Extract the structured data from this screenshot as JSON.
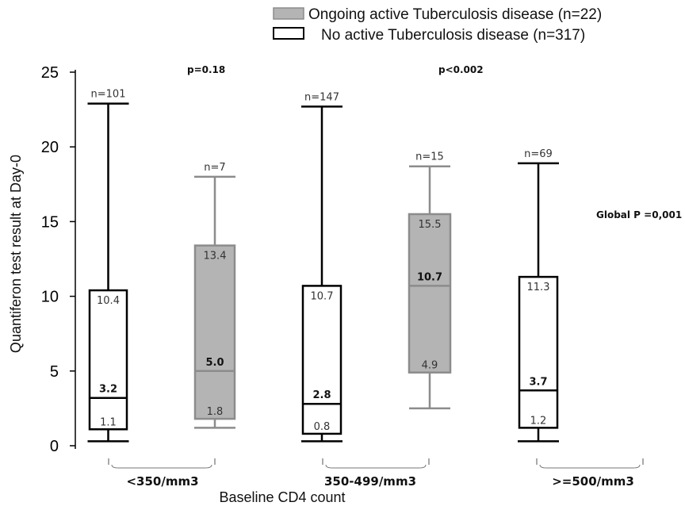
{
  "chart_data": {
    "type": "boxplot",
    "ylabel": "Quantiferon test result at Day-0",
    "xlabel": "Baseline CD4 count",
    "ylim": [
      0,
      25
    ],
    "yticks": [
      0,
      5,
      10,
      15,
      20,
      25
    ],
    "groups": [
      "<350/mm3",
      "350-499/mm3",
      ">=500/mm3"
    ],
    "legend": [
      {
        "label": "Ongoing active Tuberculosis disease (n=22)",
        "fill": "#b4b4b4",
        "stroke": "#8c8c8c"
      },
      {
        "label": "No active Tuberculosis disease (n=317)",
        "fill": "#ffffff",
        "stroke": "#000000"
      }
    ],
    "series": [
      {
        "name": "No active Tuberculosis disease (n=317)",
        "boxes": [
          {
            "group": "<350/mm3",
            "n": "n=101",
            "min": 0.3,
            "q1": 1.1,
            "median": 3.2,
            "q3": 10.4,
            "max": 22.9,
            "q1_label": "1.1",
            "median_label": "3.2",
            "q3_label": "10.4"
          },
          {
            "group": "350-499/mm3",
            "n": "n=147",
            "min": 0.3,
            "q1": 0.8,
            "median": 2.8,
            "q3": 10.7,
            "max": 22.7,
            "q1_label": "0.8",
            "median_label": "2.8",
            "q3_label": "10.7"
          },
          {
            "group": ">=500/mm3",
            "n": "n=69",
            "min": 0.3,
            "q1": 1.2,
            "median": 3.7,
            "q3": 11.3,
            "max": 18.9,
            "q1_label": "1.2",
            "median_label": "3.7",
            "q3_label": "11.3"
          }
        ]
      },
      {
        "name": "Ongoing active Tuberculosis disease (n=22)",
        "boxes": [
          {
            "group": "<350/mm3",
            "n": "n=7",
            "min": 1.2,
            "q1": 1.8,
            "median": 5.0,
            "q3": 13.4,
            "max": 18.0,
            "q1_label": "1.8",
            "median_label": "5.0",
            "q3_label": "13.4"
          },
          {
            "group": "350-499/mm3",
            "n": "n=15",
            "min": 2.5,
            "q1": 4.9,
            "median": 10.7,
            "q3": 15.5,
            "max": 18.7,
            "q1_label": "4.9",
            "median_label": "10.7",
            "q3_label": "15.5"
          }
        ]
      }
    ],
    "annotations": {
      "p_group1": "p=0.18",
      "p_group2": "p<0.002",
      "global_p": "Global P =0,001"
    }
  }
}
